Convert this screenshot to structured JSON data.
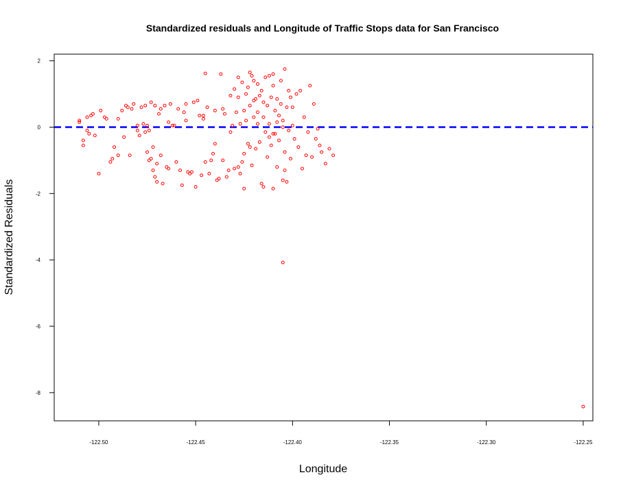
{
  "chart_data": {
    "type": "scatter",
    "title": "Standardized residuals and Longitude of Traffic Stops data for San Francisco",
    "xlabel": "Longitude",
    "ylabel": "Standardized Residuals",
    "xlim": [
      -122.523,
      -122.245
    ],
    "ylim": [
      -8.85,
      2.2
    ],
    "x_ticks": [
      -122.5,
      -122.45,
      -122.4,
      -122.35,
      -122.3,
      -122.25
    ],
    "x_tick_labels": [
      "-122.50",
      "-122.45",
      "-122.40",
      "-122.35",
      "-122.30",
      "-122.25"
    ],
    "y_ticks": [
      2,
      0,
      -2,
      -4,
      -6,
      -8
    ],
    "y_tick_labels": [
      "2",
      "0",
      "-2",
      "-4",
      "-6",
      "-8"
    ],
    "grid": false,
    "point_color": "#ff0000",
    "reference_line": {
      "y": 0,
      "color": "#0000ff",
      "style": "dashed"
    },
    "series": [
      {
        "x": [
          -122.51,
          -122.51,
          -122.508,
          -122.508,
          -122.506,
          -122.506,
          -122.505,
          -122.504,
          -122.503,
          -122.502,
          -122.5,
          -122.499,
          -122.497,
          -122.496,
          -122.494,
          -122.493,
          -122.492,
          -122.49,
          -122.488,
          -122.487,
          -122.486,
          -122.485,
          -122.484,
          -122.483,
          -122.482,
          -122.48,
          -122.479,
          -122.478,
          -122.477,
          -122.476,
          -122.476,
          -122.475,
          -122.475,
          -122.474,
          -122.474,
          -122.473,
          -122.473,
          -122.472,
          -122.472,
          -122.471,
          -122.471,
          -122.47,
          -122.47,
          -122.469,
          -122.468,
          -122.468,
          -122.467,
          -122.466,
          -122.465,
          -122.464,
          -122.463,
          -122.462,
          -122.461,
          -122.46,
          -122.459,
          -122.458,
          -122.457,
          -122.456,
          -122.455,
          -122.455,
          -122.454,
          -122.453,
          -122.452,
          -122.451,
          -122.45,
          -122.449,
          -122.448,
          -122.447,
          -122.446,
          -122.445,
          -122.444,
          -122.443,
          -122.442,
          -122.441,
          -122.44,
          -122.439,
          -122.438,
          -122.437,
          -122.436,
          -122.435,
          -122.434,
          -122.433,
          -122.432,
          -122.431,
          -122.43,
          -122.429,
          -122.428,
          -122.428,
          -122.427,
          -122.427,
          -122.426,
          -122.426,
          -122.425,
          -122.425,
          -122.424,
          -122.424,
          -122.423,
          -122.423,
          -122.422,
          -122.422,
          -122.421,
          -122.421,
          -122.42,
          -122.42,
          -122.419,
          -122.419,
          -122.418,
          -122.418,
          -122.417,
          -122.417,
          -122.416,
          -122.416,
          -122.415,
          -122.415,
          -122.414,
          -122.414,
          -122.413,
          -122.413,
          -122.412,
          -122.412,
          -122.411,
          -122.411,
          -122.41,
          -122.41,
          -122.409,
          -122.409,
          -122.408,
          -122.408,
          -122.407,
          -122.407,
          -122.406,
          -122.406,
          -122.405,
          -122.405,
          -122.404,
          -122.404,
          -122.403,
          -122.403,
          -122.402,
          -122.402,
          -122.401,
          -122.401,
          -122.4,
          -122.4,
          -122.399,
          -122.398,
          -122.397,
          -122.396,
          -122.395,
          -122.394,
          -122.393,
          -122.392,
          -122.391,
          -122.39,
          -122.389,
          -122.388,
          -122.387,
          -122.386,
          -122.385,
          -122.383,
          -122.381,
          -122.379,
          -122.415,
          -122.404,
          -122.43,
          -122.44,
          -122.405,
          -122.41,
          -122.425,
          -122.42,
          -122.418,
          -122.412,
          -122.408,
          -122.428,
          -122.432,
          -122.436,
          -122.446,
          -122.464,
          -122.48,
          -122.49,
          -122.25
        ],
        "y": [
          0.2,
          0.15,
          -0.4,
          -0.55,
          0.3,
          -0.1,
          -0.2,
          0.35,
          0.4,
          -0.25,
          -1.4,
          0.5,
          0.3,
          0.25,
          -1.05,
          -0.95,
          -0.6,
          -0.85,
          0.5,
          -0.3,
          0.65,
          0.6,
          -0.85,
          0.55,
          0.7,
          0.05,
          -0.25,
          0.6,
          0.1,
          -0.15,
          0.65,
          -0.75,
          0.05,
          -0.1,
          -1.0,
          -0.95,
          0.75,
          -1.3,
          -0.6,
          -1.5,
          0.65,
          -1.1,
          -1.65,
          0.4,
          -0.85,
          0.55,
          -1.7,
          0.65,
          -1.2,
          -1.25,
          0.7,
          0.05,
          0.05,
          -1.05,
          0.55,
          -1.3,
          -1.75,
          0.45,
          0.7,
          0.2,
          -1.35,
          -1.4,
          -1.35,
          0.75,
          -1.8,
          0.8,
          0.35,
          -1.45,
          0.25,
          -1.05,
          0.6,
          -1.4,
          -1.0,
          -0.8,
          0.5,
          -1.6,
          -1.55,
          1.6,
          -1.0,
          0.4,
          -1.5,
          -1.3,
          0.95,
          0.05,
          -1.25,
          0.45,
          1.5,
          -1.2,
          0.1,
          -1.4,
          1.35,
          -1.05,
          0.5,
          -0.8,
          1.0,
          0.2,
          -0.5,
          1.2,
          0.65,
          -0.6,
          1.55,
          -1.15,
          0.3,
          1.4,
          0.85,
          -0.65,
          1.3,
          0.1,
          0.95,
          -0.45,
          1.1,
          -1.7,
          0.75,
          -1.8,
          1.5,
          -0.15,
          0.65,
          -0.9,
          1.55,
          0.1,
          0.9,
          -0.55,
          1.25,
          1.6,
          0.5,
          -0.2,
          0.85,
          -1.2,
          0.35,
          -0.4,
          1.4,
          0.7,
          -1.6,
          0.2,
          1.75,
          -0.75,
          0.6,
          -1.65,
          1.1,
          -0.1,
          0.9,
          -0.95,
          0.05,
          0.6,
          -0.35,
          1.0,
          -0.6,
          1.1,
          -1.25,
          0.3,
          -0.85,
          -0.15,
          1.25,
          -0.9,
          0.7,
          -0.35,
          -0.05,
          -0.55,
          -0.75,
          -1.1,
          -0.65,
          -0.85,
          0.3,
          -1.3,
          1.15,
          -0.5,
          0.0,
          -0.2,
          -1.85,
          0.8,
          0.45,
          -0.3,
          0.15,
          0.9,
          -0.15,
          0.55,
          0.35,
          0.15,
          -0.1,
          0.25,
          -8.42
        ]
      }
    ],
    "extra_points": [
      {
        "x": -122.405,
        "y": -4.08
      },
      {
        "x": -122.445,
        "y": 1.62
      },
      {
        "x": -122.422,
        "y": 1.65
      },
      {
        "x": -122.41,
        "y": -1.85
      }
    ]
  }
}
